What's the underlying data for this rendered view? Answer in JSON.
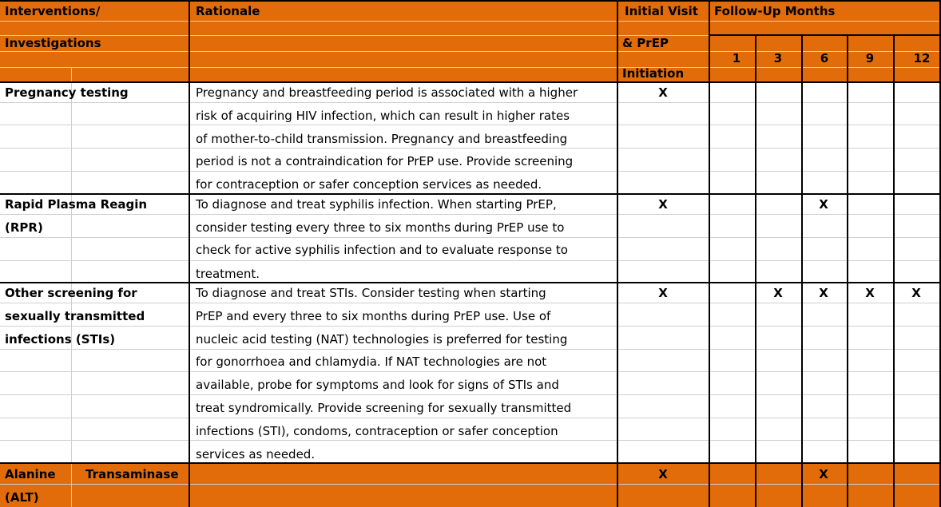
{
  "header": {
    "interventions_line1": "Interventions/",
    "interventions_line2": "Investigations",
    "rationale": "Rationale",
    "initial_line1": "Initial Visit",
    "initial_line2": "& PrEP",
    "initial_line3": "Initiation",
    "followup": "Follow-Up Months",
    "months": [
      "1",
      "3",
      "6",
      "9",
      "12"
    ]
  },
  "rows": [
    {
      "name_lines": [
        "Pregnancy testing"
      ],
      "rationale_lines": [
        "Pregnancy and breastfeeding period is associated with a higher",
        "risk of acquiring HIV infection, which can result in higher rates",
        "of mother-to-child transmission. Pregnancy and breastfeeding",
        "period is not a contraindication for PrEP use. Provide screening",
        "for contraception or safer conception services as needed."
      ],
      "initial": "X",
      "months": [
        "",
        "",
        "",
        "",
        ""
      ]
    },
    {
      "name_lines": [
        "Rapid Plasma Reagin",
        "(RPR)"
      ],
      "rationale_lines": [
        "To diagnose and treat syphilis infection. When starting PrEP,",
        "consider testing every three to six months during PrEP use to",
        "check for active syphilis infection and to evaluate response to",
        "treatment."
      ],
      "initial": "X",
      "months": [
        "",
        "",
        "X",
        "",
        ""
      ]
    },
    {
      "name_lines": [
        "Other screening for",
        "sexually transmitted",
        "infections (STIs)"
      ],
      "rationale_lines": [
        "To diagnose and treat STIs. Consider testing when starting",
        "PrEP and every three to six months during PrEP use. Use of",
        "nucleic acid testing (NAT) technologies is preferred for testing",
        "for gonorrhoea and chlamydia. If NAT technologies are not",
        "available, probe for symptoms and look for signs of STIs and",
        "treat syndromically. Provide screening for sexually transmitted",
        "infections (STI), condoms, contraception or safer conception",
        "services as needed."
      ],
      "initial": "X",
      "months": [
        "",
        "X",
        "X",
        "X",
        "X"
      ]
    },
    {
      "name_line1_left": "Alanine",
      "name_line1_right": "Transaminase",
      "name_line2": "(ALT)",
      "rationale_lines": [],
      "initial": "X",
      "months": [
        "",
        "",
        "X",
        "",
        ""
      ]
    }
  ],
  "colors": {
    "header_fill": "#e36c0a",
    "grid": "#cfcfcf",
    "border": "#000000"
  }
}
